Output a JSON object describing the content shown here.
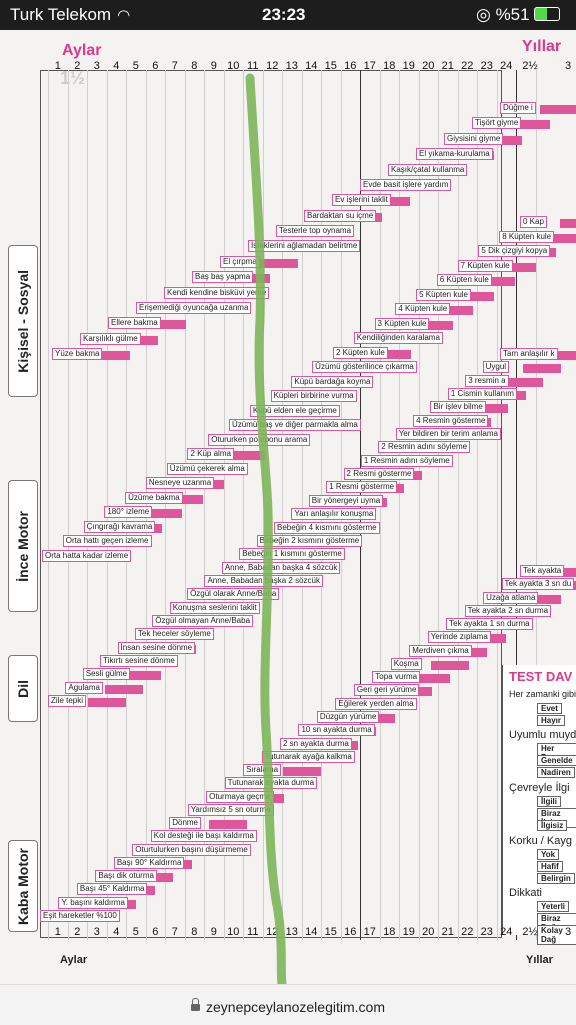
{
  "status_bar": {
    "carrier": "Turk Telekom",
    "time": "23:23",
    "battery": "%51"
  },
  "scale": {
    "left_title": "Aylar",
    "right_title": "Yıllar",
    "months": [
      "1",
      "2",
      "3",
      "4",
      "5",
      "6",
      "7",
      "8",
      "9",
      "10",
      "11",
      "12",
      "13",
      "14",
      "15",
      "16",
      "17",
      "18",
      "19",
      "20",
      "21",
      "22",
      "23",
      "24"
    ],
    "years": [
      "2½",
      "3"
    ],
    "faded_mark": "1½"
  },
  "sections": [
    "Kişisel - Sosyal",
    "İnce Motor",
    "Dil",
    "Kaba Motor"
  ],
  "skills": {
    "kisisel": [
      "Düğme i",
      "Tişört giyme",
      "Giysisini giyme",
      "El yıkama-kurulama",
      "Kaşık/çatal kullanma",
      "Evde basit işlere yardım",
      "Ev işlerini taklit",
      "Bardaktan su içme",
      "Testerle top oynama",
      "İsteklerini ağlamadan belirtme",
      "El çırpma",
      "Baş baş yapma",
      "Kendi kendine bisküvi yeme",
      "Erişemediği oyuncağa uzanma",
      "Ellere bakma",
      "Karşılıklı gülme",
      "Yüze bakma"
    ],
    "ince": [
      "0 Kap",
      "8 Küpten kule",
      "5 Dik çizgiyi kopya",
      "7 Küpten kule",
      "6 Küpten kule",
      "5 Küpten kule",
      "4 Küpten kule",
      "3 Küpten kule",
      "Kendiliğinden karalama",
      "2 Küpten kule",
      "Üzümü gösterilince çıkarma",
      "Küpü bardağa koyma",
      "Küpleri birbirine vurma",
      "Küpü elden ele geçirme",
      "Üzümü baş ve diğer parmakla alma",
      "Otururken pomponu arama",
      "2 Küp alma",
      "Üzümü çekerek alma",
      "Nesneye uzanma",
      "Üzüme bakma",
      "180° izleme",
      "Çıngırağı kavrama",
      "Orta hattı geçen izleme",
      "Orta hatta kadar izleme"
    ],
    "dil": [
      "Tam anlaşılır k",
      "Uygul",
      "3 resmin a",
      "1 Cismin kullanım",
      "Bir işlev bilme",
      "4 Resmin gösterme",
      "Yer bildiren bir terim anlama",
      "2 Resmin adını söyleme",
      "1 Resmin adını söyleme",
      "2 Resmi gösterme",
      "1 Resmi gösterme",
      "Bir yönergeyi uyma",
      "Yarı anlaşılır konuşma",
      "Bebeğin 4 kısmını gösterme",
      "Bebeğin 2 kısmını gösterme",
      "Bebeğin 1 kısmını gösterme",
      "Anne, Babadan başka 4 sözcük",
      "Anne, Babadan başka 2 sözcük",
      "Özgül olarak Anne/Baba",
      "Konuşma seslerini taklit",
      "Özgül olmayan Anne/Baba",
      "Tek heceler söyleme",
      "İnsan sesine dönme",
      "Tikırtı sesine dönme",
      "Sesli gülme",
      "Agulama",
      "Zile tepki"
    ],
    "kaba": [
      "Tek ayakta",
      "Tek ayakta 3 sn du",
      "Uzağa atlama",
      "Tek ayakta 2 sn durma",
      "Tek ayakta 1 sn durma",
      "Yerinde zıplama",
      "Merdiven çıkma",
      "Koşma",
      "Topa vurma",
      "Geri geri yürüme",
      "Eğilerek yerden alma",
      "Düzgün yürüme",
      "10 sn ayakta durma",
      "2 sn ayakta durma",
      "Tutunarak ayağa kalkma",
      "Sıralama",
      "Tutunarak ayakta durma",
      "Oturmaya geçme",
      "Yardımsız 5 sn oturma",
      "Dönme",
      "Kol desteği ile başı kaldırma",
      "Oturtulurken başını düşürmeme",
      "Başı 90° Kaldırma",
      "Başı dik oturma",
      "Başı 45° Kaldırma",
      "Y. başını kaldırma",
      "Eşit hareketler %100"
    ]
  },
  "test_panel": {
    "title": "TEST DAV",
    "q1": "Her zamanki gibi",
    "q1_opts": [
      "Evet",
      "Hayır"
    ],
    "q2": "Uyumlu muyd",
    "q2_opts": [
      "Her Zama",
      "Genelde",
      "Nadiren"
    ],
    "q3": "Çevreyle İlgi",
    "q3_opts": [
      "İlgili",
      "Biraz İlgi",
      "İlgisiz"
    ],
    "q4": "Korku / Kayg",
    "q4_opts": [
      "Yok",
      "Hafif",
      "Belirgin"
    ],
    "q5": "Dikkati",
    "q5_opts": [
      "Yeterli",
      "Biraz Dağ",
      "Kolay Dağ"
    ]
  },
  "url": "zeynepceylanozelegitim.com",
  "colors": {
    "accent": "#e0569a",
    "marker": "#7db55a"
  }
}
